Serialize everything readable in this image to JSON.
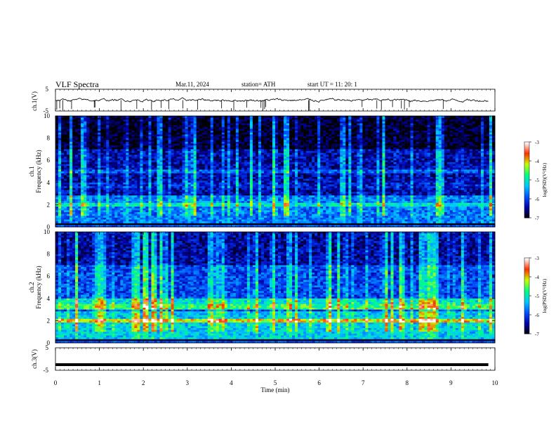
{
  "header": {
    "title": "VLF Spectra",
    "date": "Mar.11, 2024",
    "station": "station= ATH",
    "start": "start UT =   11: 20: 1"
  },
  "colors": {
    "colormap": [
      "#000000",
      "#0000a8",
      "#0050ff",
      "#00c8ff",
      "#00ff80",
      "#c8ff00",
      "#ff3000",
      "#ffffff"
    ]
  },
  "chart_data": [
    {
      "type": "line",
      "panel": "ch1-waveform",
      "ylabel": "ch.1(V)",
      "ylim": [
        -5,
        5
      ],
      "yticks": [
        "5",
        "-5"
      ],
      "xlim": [
        0,
        10
      ],
      "baseline_v": 0,
      "description_values": {
        "mean_v": 0,
        "noise_v": 0.6
      }
    },
    {
      "type": "heatmap",
      "panel": "ch1-spectrogram",
      "ylabel": "ch.1\nFrequency (kHz)",
      "ylabel_line1": "ch.1",
      "ylabel_line2": "Frequency (kHz)",
      "ylim": [
        0,
        10
      ],
      "yticks": [
        "0",
        "2",
        "4",
        "6",
        "8",
        "10"
      ],
      "xlim": [
        0,
        10
      ],
      "colorbar": {
        "label": "log(PSD)(V²/Hz)",
        "ticks": [
          "-3",
          "-4",
          "-5",
          "-6",
          "-7"
        ],
        "range": [
          -7,
          -3
        ]
      },
      "features_khz": [
        {
          "freq": 2.0,
          "level": -5.2
        },
        {
          "freq": 3.8,
          "level": -6.3
        },
        {
          "freq": 5.0,
          "level": -6.0
        }
      ]
    },
    {
      "type": "heatmap",
      "panel": "ch2-spectrogram",
      "ylabel": "ch.2\nFrequency (kHz)",
      "ylabel_line1": "ch.2",
      "ylabel_line2": "Frequency (kHz)",
      "ylim": [
        0,
        10
      ],
      "yticks": [
        "0",
        "2",
        "4",
        "6",
        "8",
        "10"
      ],
      "xlim": [
        0,
        10
      ],
      "colorbar": {
        "label": "log(PSD)(V²/Hz)",
        "ticks": [
          "-3",
          "-4",
          "-5",
          "-6",
          "-7"
        ],
        "range": [
          -7,
          -3
        ]
      },
      "features_khz": [
        {
          "freq": 2.0,
          "level": -4.2
        },
        {
          "freq": 3.2,
          "level": -4.8
        },
        {
          "freq": 3.8,
          "level": -5.2
        }
      ]
    },
    {
      "type": "line",
      "panel": "ch3-waveform",
      "ylabel": "ch.3(V)",
      "ylim": [
        -5,
        5
      ],
      "yticks": [
        "5",
        "-5"
      ],
      "xlim": [
        0,
        10
      ],
      "baseline_v": -2.5
    }
  ],
  "xaxis": {
    "label": "Time  (min)",
    "ticks": [
      "0",
      "1",
      "2",
      "3",
      "4",
      "5",
      "6",
      "7",
      "8",
      "9",
      "10"
    ]
  }
}
